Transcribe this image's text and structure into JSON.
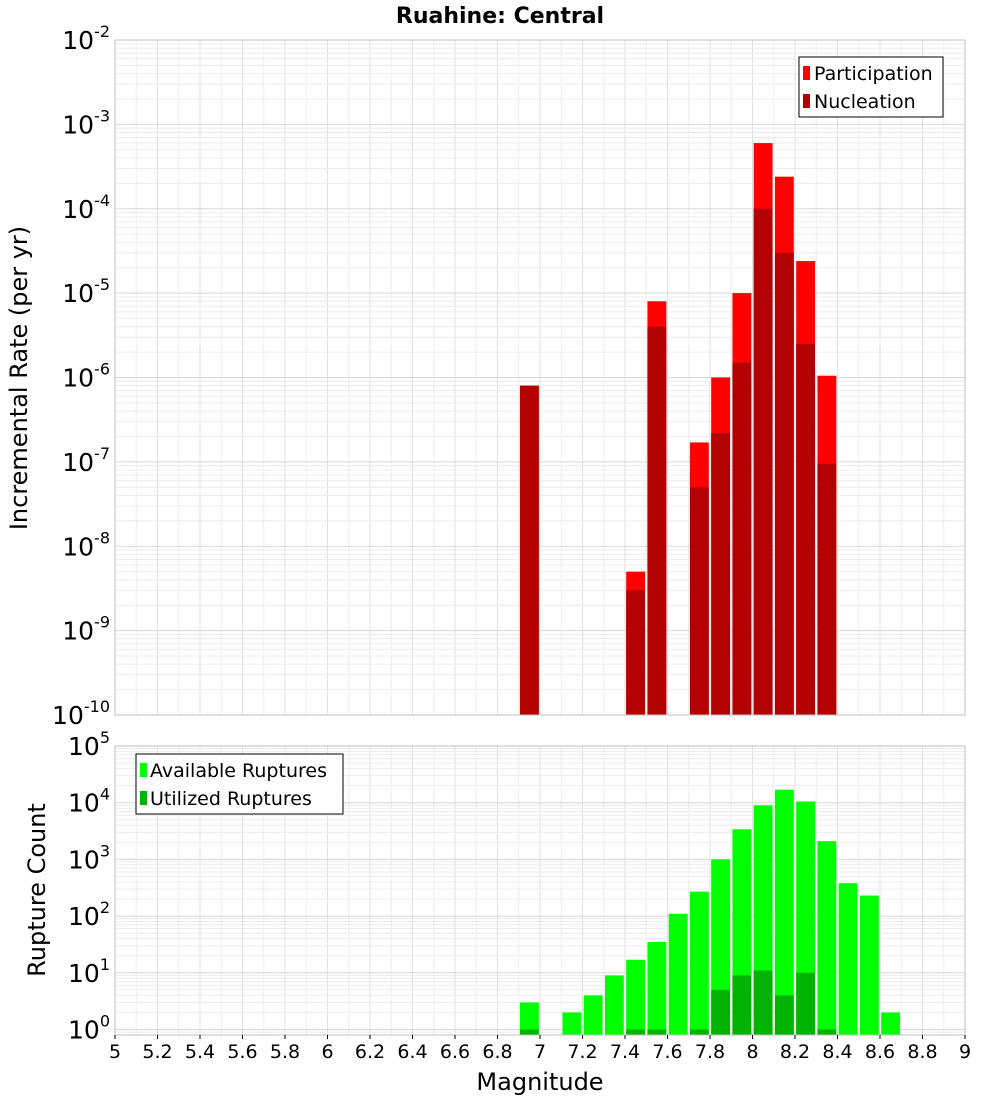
{
  "chart_data": [
    {
      "type": "bar",
      "title": "Ruahine: Central",
      "ylabel": "Incremental Rate (per yr)",
      "xlabel": "",
      "yscale": "log",
      "ylim": [
        1e-10,
        0.01
      ],
      "xlim": [
        5,
        9
      ],
      "bin_width": 0.1,
      "legend": "top-right",
      "grid": true,
      "series": [
        {
          "name": "Participation",
          "color": "#ff0000",
          "x": [
            6.95,
            7.45,
            7.55,
            7.75,
            7.85,
            7.95,
            8.05,
            8.15,
            8.25,
            8.35
          ],
          "values": [
            8e-07,
            5e-09,
            8e-06,
            1.7e-07,
            1e-06,
            1e-05,
            0.0006,
            0.00024,
            2.4e-05,
            1.05e-06
          ]
        },
        {
          "name": "Nucleation",
          "color": "#b30000",
          "x": [
            6.95,
            7.45,
            7.55,
            7.75,
            7.85,
            7.95,
            8.05,
            8.15,
            8.25,
            8.35
          ],
          "values": [
            8e-07,
            3e-09,
            4e-06,
            5e-08,
            2.2e-07,
            1.5e-06,
            0.0001,
            3e-05,
            2.5e-06,
            9.5e-08
          ]
        }
      ]
    },
    {
      "type": "bar",
      "title": "",
      "ylabel": "Rupture Count",
      "xlabel": "Magnitude",
      "yscale": "log",
      "ylim": [
        0.8,
        100000.0
      ],
      "xlim": [
        5,
        9
      ],
      "bin_width": 0.1,
      "legend": "top-left",
      "grid": true,
      "x_ticks": [
        "5",
        "5.2",
        "5.4",
        "5.6",
        "5.8",
        "6",
        "6.2",
        "6.4",
        "6.6",
        "6.8",
        "7",
        "7.2",
        "7.4",
        "7.6",
        "7.8",
        "8",
        "8.2",
        "8.4",
        "8.6",
        "8.8",
        "9"
      ],
      "series": [
        {
          "name": "Available Ruptures",
          "color": "#00ff00",
          "x": [
            6.95,
            7.15,
            7.25,
            7.35,
            7.45,
            7.55,
            7.65,
            7.75,
            7.85,
            7.95,
            8.05,
            8.15,
            8.25,
            8.35,
            8.45,
            8.55,
            8.65
          ],
          "values": [
            3,
            2,
            4,
            9,
            17,
            35,
            110,
            270,
            1000,
            3400,
            9000,
            17000,
            10500,
            2100,
            380,
            230,
            2
          ]
        },
        {
          "name": "Utilized Ruptures",
          "color": "#00b300",
          "x": [
            6.95,
            7.45,
            7.55,
            7.75,
            7.85,
            7.95,
            8.05,
            8.15,
            8.25,
            8.35
          ],
          "values": [
            1,
            1,
            1,
            1,
            5,
            9,
            11,
            4,
            10,
            1
          ]
        }
      ]
    }
  ]
}
